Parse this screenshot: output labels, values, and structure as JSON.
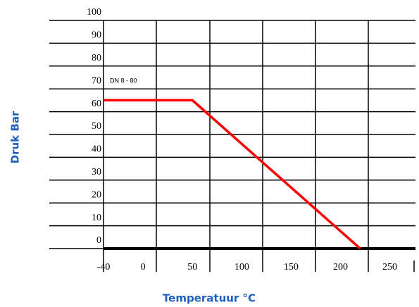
{
  "chart_data": {
    "type": "line",
    "x_label": "Temperatuur °C",
    "y_label": "Druk Bar",
    "annotation": "DN 8 - 80",
    "xlim": [
      -95,
      276
    ],
    "ylim": [
      0,
      100
    ],
    "xticks": [
      -40,
      0,
      50,
      100,
      150,
      200,
      250
    ],
    "yticks": [
      0,
      10,
      20,
      30,
      40,
      50,
      60,
      70,
      80,
      90,
      100
    ],
    "grid": true,
    "series": [
      {
        "color": "#ff0000",
        "x": [
          -40,
          50,
          220
        ],
        "values": [
          65,
          65,
          0
        ]
      }
    ]
  }
}
